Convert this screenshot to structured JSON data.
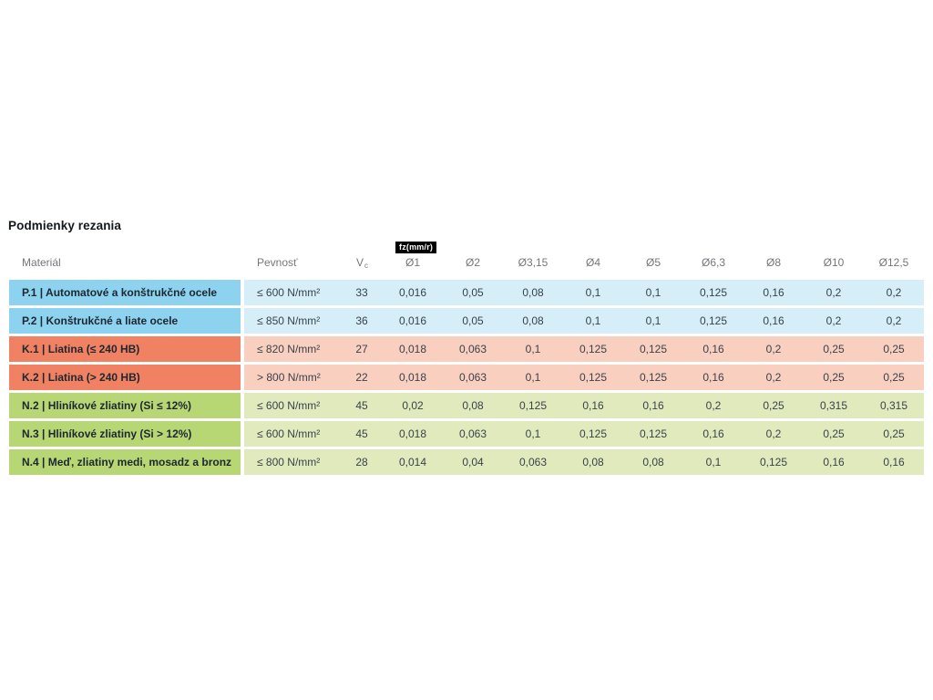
{
  "title": "Podmienky rezania",
  "colors": {
    "blue_dark": "#8dd2ee",
    "blue_light": "#d6eef8",
    "orange_dark": "#f08263",
    "orange_light": "#f9cfc0",
    "green_dark": "#b7d674",
    "green_light": "#e0eabd",
    "fz_bg": "#000000",
    "fz_text": "#ffffff"
  },
  "table": {
    "col_material": "Materiál",
    "col_strength": "Pevnosť",
    "col_vc_main": "V",
    "col_vc_sub": "c",
    "fz_unit": "fz(mm/r)",
    "diameters": [
      "Ø1",
      "Ø2",
      "Ø3,15",
      "Ø4",
      "Ø5",
      "Ø6,3",
      "Ø8",
      "Ø10",
      "Ø12,5"
    ],
    "rows": [
      {
        "color_group": "blue",
        "material": "P.1 | Automatové a konštrukčné ocele",
        "strength": "≤ 600 N/mm²",
        "vc": "33",
        "values": [
          "0,016",
          "0,05",
          "0,08",
          "0,1",
          "0,1",
          "0,125",
          "0,16",
          "0,2",
          "0,2"
        ]
      },
      {
        "color_group": "blue",
        "material": "P.2 | Konštrukčné a liate ocele",
        "strength": "≤ 850 N/mm²",
        "vc": "36",
        "values": [
          "0,016",
          "0,05",
          "0,08",
          "0,1",
          "0,1",
          "0,125",
          "0,16",
          "0,2",
          "0,2"
        ]
      },
      {
        "color_group": "orange",
        "material": "K.1 | Liatina (≤ 240 HB)",
        "strength": "≤ 820 N/mm²",
        "vc": "27",
        "values": [
          "0,018",
          "0,063",
          "0,1",
          "0,125",
          "0,125",
          "0,16",
          "0,2",
          "0,25",
          "0,25"
        ]
      },
      {
        "color_group": "orange",
        "material": "K.2 | Liatina (> 240 HB)",
        "strength": "> 800 N/mm²",
        "vc": "22",
        "values": [
          "0,018",
          "0,063",
          "0,1",
          "0,125",
          "0,125",
          "0,16",
          "0,2",
          "0,25",
          "0,25"
        ]
      },
      {
        "color_group": "green",
        "material": "N.2 | Hliníkové zliatiny (Si ≤ 12%)",
        "strength": "≤ 600 N/mm²",
        "vc": "45",
        "values": [
          "0,02",
          "0,08",
          "0,125",
          "0,16",
          "0,16",
          "0,2",
          "0,25",
          "0,315",
          "0,315"
        ]
      },
      {
        "color_group": "green",
        "material": "N.3 | Hliníkové zliatiny (Si > 12%)",
        "strength": "≤ 600 N/mm²",
        "vc": "45",
        "values": [
          "0,018",
          "0,063",
          "0,1",
          "0,125",
          "0,125",
          "0,16",
          "0,2",
          "0,25",
          "0,25"
        ]
      },
      {
        "color_group": "green",
        "material": "N.4 | Meď, zliatiny medi, mosadz a bronz",
        "strength": "≤ 800 N/mm²",
        "vc": "28",
        "values": [
          "0,014",
          "0,04",
          "0,063",
          "0,08",
          "0,08",
          "0,1",
          "0,125",
          "0,16",
          "0,16"
        ]
      }
    ]
  }
}
